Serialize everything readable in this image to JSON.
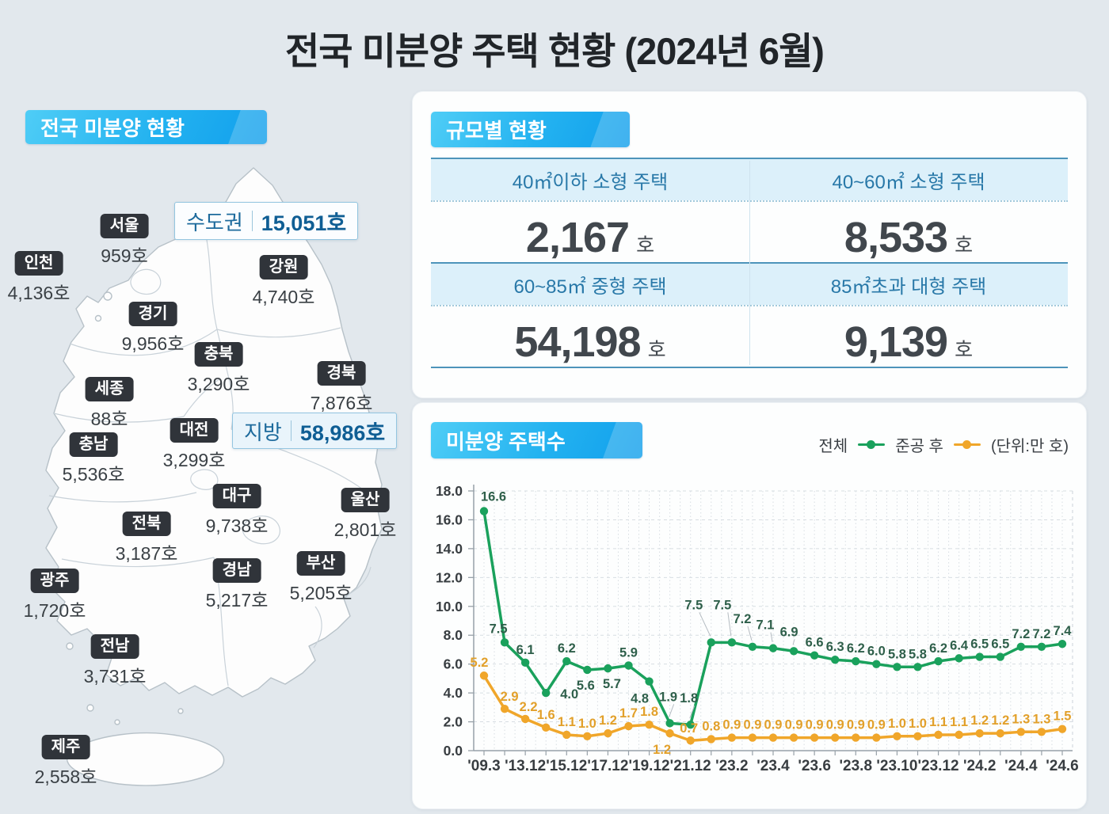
{
  "title": "전국 미분양 주택 현황  (2024년 6월)",
  "map_panel": {
    "header": "전국 미분양 현황",
    "capital_badge": {
      "label": "수도권",
      "value": "15,051호"
    },
    "regional_badge": {
      "label": "지방",
      "value": "58,986호"
    },
    "regions": [
      {
        "name": "서울",
        "value": "959호"
      },
      {
        "name": "인천",
        "value": "4,136호"
      },
      {
        "name": "경기",
        "value": "9,956호"
      },
      {
        "name": "강원",
        "value": "4,740호"
      },
      {
        "name": "충북",
        "value": "3,290호"
      },
      {
        "name": "경북",
        "value": "7,876호"
      },
      {
        "name": "세종",
        "value": "88호"
      },
      {
        "name": "대전",
        "value": "3,299호"
      },
      {
        "name": "충남",
        "value": "5,536호"
      },
      {
        "name": "대구",
        "value": "9,738호"
      },
      {
        "name": "울산",
        "value": "2,801호"
      },
      {
        "name": "전북",
        "value": "3,187호"
      },
      {
        "name": "부산",
        "value": "5,205호"
      },
      {
        "name": "경남",
        "value": "5,217호"
      },
      {
        "name": "광주",
        "value": "1,720호"
      },
      {
        "name": "전남",
        "value": "3,731호"
      },
      {
        "name": "제주",
        "value": "2,558호"
      }
    ]
  },
  "size_panel": {
    "header": "규모별 현황",
    "cells": [
      {
        "label": "40㎡이하 소형 주택",
        "value": "2,167",
        "unit": "호"
      },
      {
        "label": "40~60㎡ 소형 주택",
        "value": "8,533",
        "unit": "호"
      },
      {
        "label": "60~85㎡ 중형 주택",
        "value": "54,198",
        "unit": "호"
      },
      {
        "label": "85㎡초과 대형 주택",
        "value": "9,139",
        "unit": "호"
      }
    ]
  },
  "chart_panel": {
    "header": "미분양 주택수",
    "unit_note": "(단위:만 호)",
    "legend": [
      {
        "label": "전체",
        "color": "#1aa15c"
      },
      {
        "label": "준공 후",
        "color": "#f0a62a"
      }
    ]
  },
  "chart_data": {
    "type": "line",
    "title": "미분양 주택수",
    "unit": "만 호",
    "x_tick_labels": [
      "'09.3",
      "'13.12",
      "'15.12",
      "'17.12",
      "'19.12",
      "'21.12",
      "'23.2",
      "'23.4",
      "'23.6",
      "'23.8",
      "'23.10",
      "'23.12",
      "'24.2",
      "'24.4",
      "'24.6"
    ],
    "points_per_tick": 2,
    "ylim": [
      0,
      18
    ],
    "ytick_step": 2,
    "grid": true,
    "legend_position": "top-right",
    "series": [
      {
        "name": "전체",
        "color": "#1aa15c",
        "label_color": "#2e5f4a",
        "values": [
          16.6,
          7.5,
          6.1,
          4.0,
          6.2,
          5.6,
          5.7,
          5.9,
          4.8,
          1.9,
          1.8,
          7.5,
          7.5,
          7.2,
          7.1,
          6.9,
          6.6,
          6.3,
          6.2,
          6.0,
          5.8,
          5.8,
          6.2,
          6.4,
          6.5,
          6.5,
          7.2,
          7.2,
          7.4
        ]
      },
      {
        "name": "준공 후",
        "color": "#f0a62a",
        "label_color": "#e2a02a",
        "values": [
          5.2,
          2.9,
          2.2,
          1.6,
          1.1,
          1.0,
          1.2,
          1.7,
          1.8,
          1.2,
          0.7,
          0.8,
          0.9,
          0.9,
          0.9,
          0.9,
          0.9,
          0.9,
          0.9,
          0.9,
          1.0,
          1.0,
          1.1,
          1.1,
          1.2,
          1.2,
          1.3,
          1.3,
          1.5
        ]
      }
    ]
  }
}
